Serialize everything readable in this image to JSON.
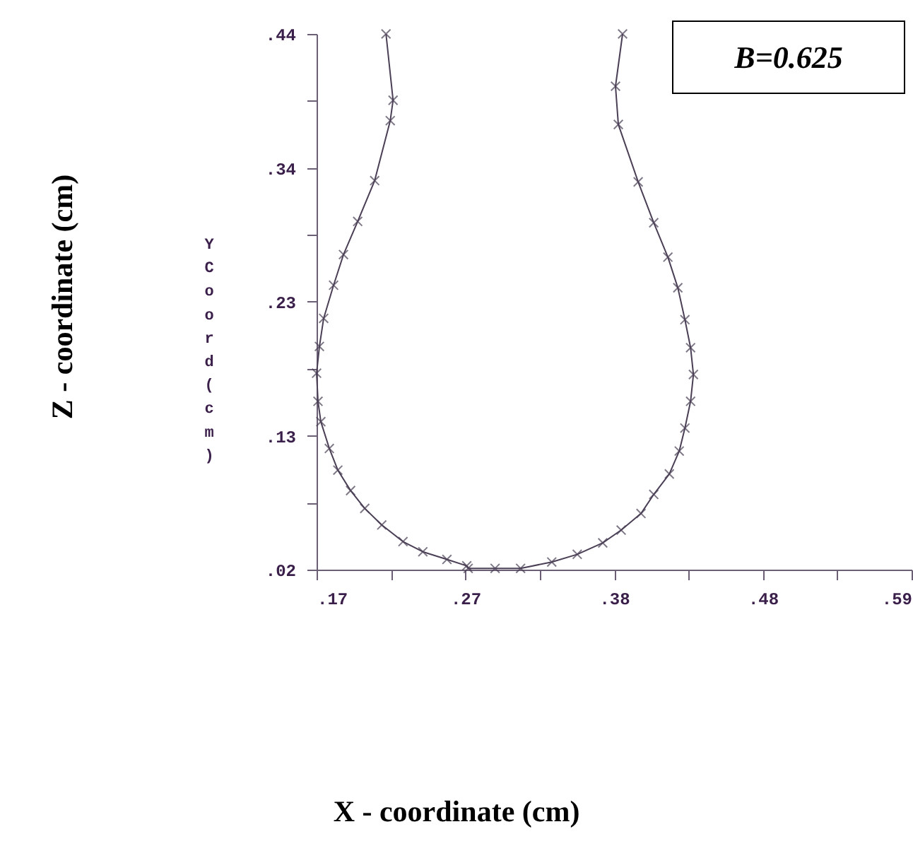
{
  "chart_data": {
    "type": "line",
    "ylabel": "Y Coord (cm)",
    "annotations": [
      "Z - coordinate  (cm)",
      "X - coordinate  (cm)",
      "B=0.625"
    ],
    "x": [
      0.219,
      0.224,
      0.222,
      0.211,
      0.199,
      0.189,
      0.182,
      0.175,
      0.172,
      0.17,
      0.171,
      0.173,
      0.179,
      0.185,
      0.194,
      0.204,
      0.216,
      0.231,
      0.245,
      0.262,
      0.276,
      0.277,
      0.296,
      0.314,
      0.336,
      0.354,
      0.372,
      0.385,
      0.399,
      0.408,
      0.419,
      0.426,
      0.43,
      0.434,
      0.436,
      0.434,
      0.43,
      0.425,
      0.418,
      0.408,
      0.397,
      0.383,
      0.381,
      0.386
    ],
    "series": [
      {
        "color": "#4a3f55",
        "values": [
          0.44,
          0.388,
          0.372,
          0.325,
          0.293,
          0.267,
          0.243,
          0.217,
          0.195,
          0.174,
          0.152,
          0.136,
          0.115,
          0.098,
          0.082,
          0.068,
          0.055,
          0.042,
          0.034,
          0.028,
          0.023,
          0.021,
          0.021,
          0.021,
          0.026,
          0.032,
          0.041,
          0.051,
          0.064,
          0.079,
          0.095,
          0.113,
          0.131,
          0.152,
          0.173,
          0.194,
          0.216,
          0.241,
          0.265,
          0.292,
          0.324,
          0.369,
          0.399,
          0.44
        ]
      }
    ],
    "marker": "cross",
    "line_style": "solid",
    "grid": false,
    "xlim": [
      0.17,
      0.59
    ],
    "ylim": [
      0.02,
      0.44
    ],
    "xticks": [
      {
        "value": 0.17,
        "label": ".17"
      },
      {
        "value": 0.2225,
        "label": null
      },
      {
        "value": 0.275,
        "label": ".27"
      },
      {
        "value": 0.3275,
        "label": null
      },
      {
        "value": 0.38,
        "label": ".38"
      },
      {
        "value": 0.4325,
        "label": null
      },
      {
        "value": 0.485,
        "label": ".48"
      },
      {
        "value": 0.5375,
        "label": null
      },
      {
        "value": 0.59,
        "label": ".59"
      }
    ],
    "yticks": [
      {
        "value": 0.02,
        "label": ".02"
      },
      {
        "value": 0.0725,
        "label": null
      },
      {
        "value": 0.125,
        "label": ".13"
      },
      {
        "value": 0.1775,
        "label": null
      },
      {
        "value": 0.23,
        "label": ".23"
      },
      {
        "value": 0.2825,
        "label": null
      },
      {
        "value": 0.335,
        "label": ".34"
      },
      {
        "value": 0.3875,
        "label": null
      },
      {
        "value": 0.44,
        "label": ".44"
      }
    ]
  }
}
